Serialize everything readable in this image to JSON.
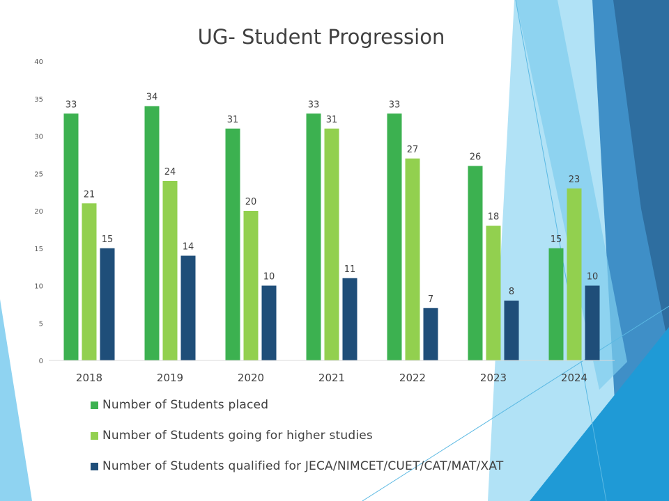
{
  "slide": {
    "title": "UG- Student Progression"
  },
  "theme_colors": {
    "accent_light_blue": "#7fcdee",
    "accent_blue": "#1f9ad6",
    "accent_dark_blue": "#2e6ea0"
  },
  "chart_data": {
    "type": "bar",
    "title": "UG- Student Progression",
    "categories": [
      "2018",
      "2019",
      "2020",
      "2021",
      "2022",
      "2023",
      "2024"
    ],
    "series": [
      {
        "name": "Number of Students placed",
        "color": "#3cb150",
        "values": [
          33,
          34,
          31,
          33,
          33,
          26,
          15
        ]
      },
      {
        "name": "Number of Students going for higher studies",
        "color": "#92d04f",
        "values": [
          21,
          24,
          20,
          31,
          27,
          18,
          23
        ]
      },
      {
        "name": "Number of Students qualified for JECA/NIMCET/CUET/CAT/MAT/XAT",
        "color": "#1f4e79",
        "values": [
          15,
          14,
          10,
          11,
          7,
          8,
          10
        ]
      }
    ],
    "ylim": [
      0,
      40
    ],
    "yticks": [
      0,
      5,
      10,
      15,
      20,
      25,
      30,
      35,
      40
    ],
    "grid": false,
    "data_labels": true,
    "legend_position": "bottom"
  }
}
